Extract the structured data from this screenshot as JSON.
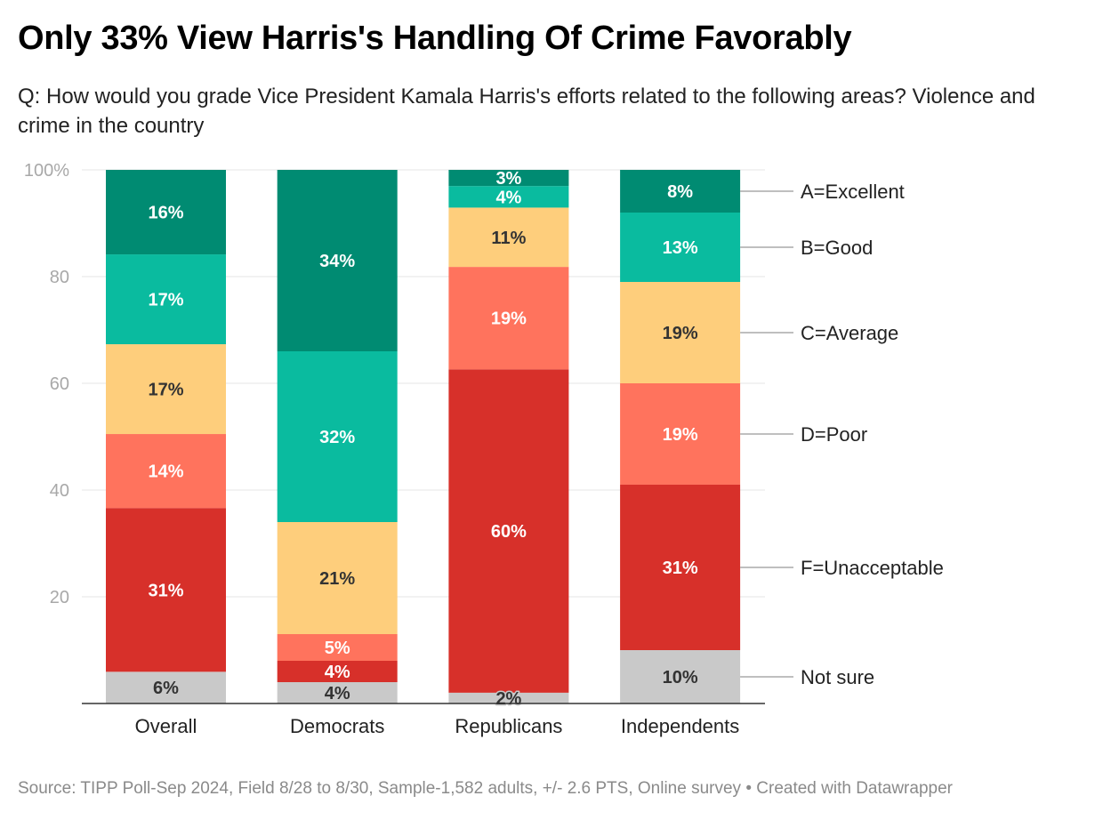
{
  "title": "Only 33% View Harris's Handling Of Crime Favorably",
  "subtitle": "Q: How would you grade Vice President Kamala Harris's efforts related to the following areas? Violence and crime in the country",
  "source": "Source: TIPP Poll-Sep 2024, Field 8/28 to 8/30, Sample-1,582 adults, +/- 2.6 PTS, Online survey • Created with Datawrapper",
  "chart_data": {
    "type": "bar",
    "stacked": true,
    "categories": [
      "Overall",
      "Democrats",
      "Republicans",
      "Independents"
    ],
    "ylim": [
      0,
      100
    ],
    "yticks": [
      20,
      40,
      60,
      80,
      100
    ],
    "ytick_labels": [
      "20",
      "40",
      "60",
      "80",
      "100%"
    ],
    "grid": true,
    "legend_placement": "right",
    "series": [
      {
        "name": "Not sure",
        "color": "#c9c9c9",
        "label_color": "#333333",
        "values": [
          6,
          4,
          2,
          10
        ]
      },
      {
        "name": "F=Unacceptable",
        "color": "#d7302a",
        "label_color": "#ffffff",
        "values": [
          31,
          4,
          60,
          31
        ]
      },
      {
        "name": "D=Poor",
        "color": "#ff735d",
        "label_color": "#ffffff",
        "values": [
          14,
          5,
          19,
          19
        ]
      },
      {
        "name": "C=Average",
        "color": "#fece7c",
        "label_color": "#333333",
        "values": [
          17,
          21,
          11,
          19
        ]
      },
      {
        "name": "B=Good",
        "color": "#0abb9f",
        "label_color": "#ffffff",
        "values": [
          17,
          32,
          4,
          13
        ]
      },
      {
        "name": "A=Excellent",
        "color": "#008b72",
        "label_color": "#ffffff",
        "values": [
          16,
          34,
          3,
          8
        ]
      }
    ],
    "value_suffix": "%"
  }
}
